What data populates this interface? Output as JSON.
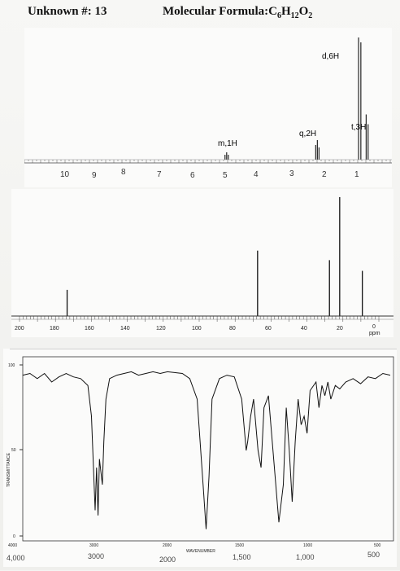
{
  "header": {
    "unknown_label": "Unknown #: 13",
    "formula_prefix": "Molecular Formula:",
    "formula_parts": [
      "C",
      "6",
      "H",
      "12",
      "O",
      "2"
    ]
  },
  "hnmr": {
    "peak_labels": [
      "d,6H",
      "t,3H",
      "q,2H",
      "m,1H"
    ],
    "axis_ticks": [
      "10",
      "9",
      "8",
      "7",
      "6",
      "5",
      "4",
      "3",
      "2",
      "1"
    ],
    "peaks_ppm": [
      {
        "ppm": 0.95,
        "rel": 1.0
      },
      {
        "ppm": 0.88,
        "rel": 0.96
      },
      {
        "ppm": 0.72,
        "rel": 0.37
      },
      {
        "ppm": 0.66,
        "rel": 0.29
      },
      {
        "ppm": 2.15,
        "rel": 0.1
      },
      {
        "ppm": 2.2,
        "rel": 0.16
      },
      {
        "ppm": 2.25,
        "rel": 0.12
      },
      {
        "ppm": 5.0,
        "rel": 0.04
      },
      {
        "ppm": 4.95,
        "rel": 0.06
      },
      {
        "ppm": 4.9,
        "rel": 0.04
      }
    ]
  },
  "cnmr": {
    "axis_ticks": [
      "200",
      "180",
      "160",
      "140",
      "120",
      "100",
      "80",
      "60",
      "40",
      "20",
      "0"
    ],
    "unit": "ppm",
    "peaks_ppm": [
      {
        "ppm": 173.5,
        "rel": 0.22
      },
      {
        "ppm": 67.5,
        "rel": 0.55
      },
      {
        "ppm": 27.5,
        "rel": 0.47
      },
      {
        "ppm": 21.8,
        "rel": 1.0
      },
      {
        "ppm": 9.2,
        "rel": 0.38
      }
    ]
  },
  "ir": {
    "y_label": "TRANSMITTANCE",
    "y_ticks": [
      "100",
      "50",
      "0"
    ],
    "x_ticks_printed": [
      "4000",
      "3000",
      "2000",
      "1500",
      "1000",
      "500"
    ],
    "x_label": "WAVENUMBER",
    "x_ticks_handwritten": [
      "4,000",
      "3000",
      "2000",
      "1,500",
      "1,000",
      "500"
    ],
    "trace": [
      [
        4000,
        94
      ],
      [
        3900,
        95
      ],
      [
        3800,
        92
      ],
      [
        3700,
        95
      ],
      [
        3600,
        90
      ],
      [
        3500,
        93
      ],
      [
        3400,
        95
      ],
      [
        3300,
        93
      ],
      [
        3200,
        92
      ],
      [
        3100,
        88
      ],
      [
        3050,
        70
      ],
      [
        3000,
        15
      ],
      [
        2980,
        40
      ],
      [
        2960,
        12
      ],
      [
        2940,
        45
      ],
      [
        2900,
        30
      ],
      [
        2880,
        55
      ],
      [
        2850,
        80
      ],
      [
        2800,
        92
      ],
      [
        2700,
        94
      ],
      [
        2600,
        95
      ],
      [
        2500,
        96
      ],
      [
        2400,
        94
      ],
      [
        2300,
        95
      ],
      [
        2200,
        96
      ],
      [
        2100,
        95
      ],
      [
        2000,
        96
      ],
      [
        1900,
        95
      ],
      [
        1850,
        92
      ],
      [
        1800,
        80
      ],
      [
        1760,
        30
      ],
      [
        1740,
        4
      ],
      [
        1720,
        35
      ],
      [
        1700,
        80
      ],
      [
        1650,
        92
      ],
      [
        1600,
        94
      ],
      [
        1550,
        93
      ],
      [
        1500,
        80
      ],
      [
        1470,
        50
      ],
      [
        1460,
        55
      ],
      [
        1440,
        70
      ],
      [
        1420,
        80
      ],
      [
        1390,
        50
      ],
      [
        1370,
        40
      ],
      [
        1350,
        75
      ],
      [
        1320,
        82
      ],
      [
        1280,
        40
      ],
      [
        1250,
        8
      ],
      [
        1220,
        30
      ],
      [
        1200,
        75
      ],
      [
        1180,
        50
      ],
      [
        1160,
        20
      ],
      [
        1140,
        55
      ],
      [
        1120,
        80
      ],
      [
        1100,
        65
      ],
      [
        1080,
        70
      ],
      [
        1060,
        60
      ],
      [
        1040,
        85
      ],
      [
        1000,
        90
      ],
      [
        980,
        75
      ],
      [
        960,
        88
      ],
      [
        940,
        82
      ],
      [
        920,
        90
      ],
      [
        900,
        80
      ],
      [
        870,
        88
      ],
      [
        840,
        86
      ],
      [
        800,
        90
      ],
      [
        750,
        92
      ],
      [
        700,
        89
      ],
      [
        650,
        93
      ],
      [
        600,
        92
      ],
      [
        550,
        95
      ],
      [
        500,
        94
      ]
    ]
  }
}
